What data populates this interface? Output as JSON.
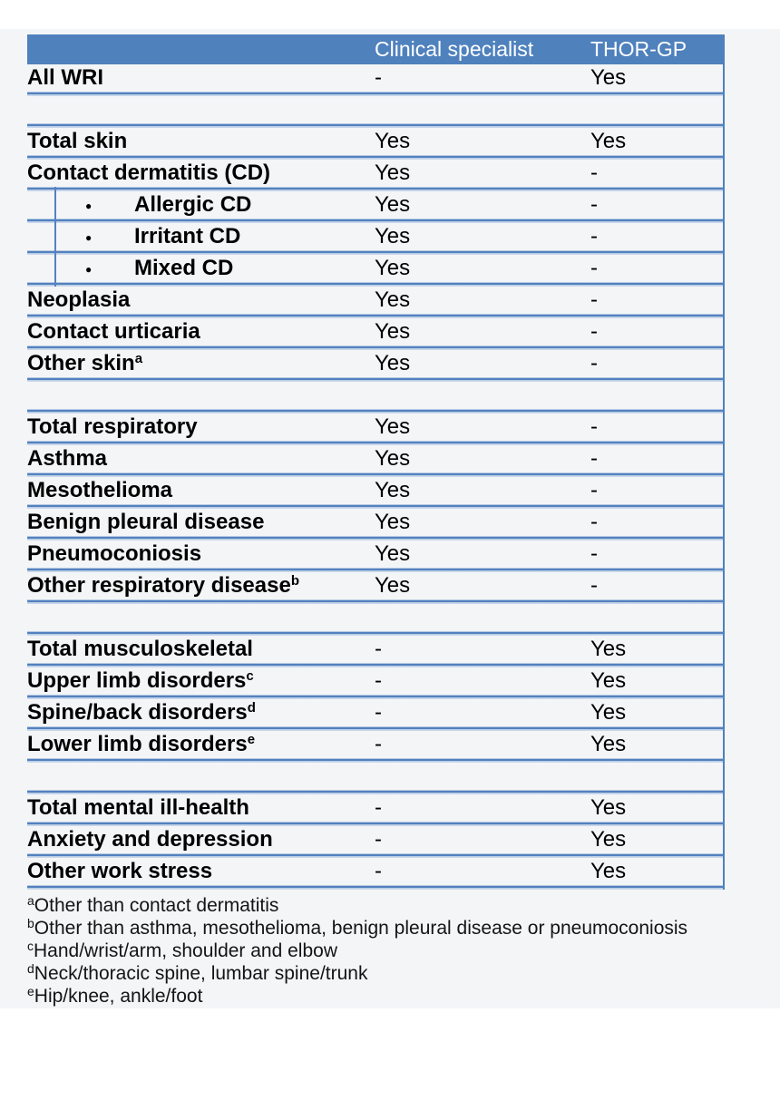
{
  "colors": {
    "header_blue": "#4f81bd",
    "divider_blue": "#5381bf",
    "divider_light_blue": "#b5c9e2",
    "header_text": "#ffffff"
  },
  "icons": {
    "bullet": "●"
  },
  "table": {
    "columns": [
      "",
      "Clinical specialist",
      "THOR-GP"
    ],
    "rows": [
      {
        "label": "All WRI",
        "sup": "",
        "bullet": false,
        "spacer": false,
        "clinical": "-",
        "thor": "Yes"
      },
      {
        "label": "",
        "sup": "",
        "bullet": false,
        "spacer": true,
        "clinical": "",
        "thor": ""
      },
      {
        "label": "Total skin",
        "sup": "",
        "bullet": false,
        "spacer": false,
        "clinical": "Yes",
        "thor": "Yes"
      },
      {
        "label": "Contact dermatitis (CD)",
        "sup": "",
        "bullet": false,
        "spacer": false,
        "clinical": "Yes",
        "thor": "-"
      },
      {
        "label": "Allergic CD",
        "sup": "",
        "bullet": true,
        "spacer": false,
        "clinical": "Yes",
        "thor": "-"
      },
      {
        "label": "Irritant CD",
        "sup": "",
        "bullet": true,
        "spacer": false,
        "clinical": "Yes",
        "thor": "-"
      },
      {
        "label": "Mixed CD",
        "sup": "",
        "bullet": true,
        "spacer": false,
        "clinical": "Yes",
        "thor": "-"
      },
      {
        "label": "Neoplasia",
        "sup": "",
        "bullet": false,
        "spacer": false,
        "clinical": "Yes",
        "thor": "-"
      },
      {
        "label": "Contact urticaria",
        "sup": "",
        "bullet": false,
        "spacer": false,
        "clinical": "Yes",
        "thor": "-"
      },
      {
        "label": "Other skin",
        "sup": "a",
        "bullet": false,
        "spacer": false,
        "clinical": "Yes",
        "thor": "-"
      },
      {
        "label": "",
        "sup": "",
        "bullet": false,
        "spacer": true,
        "clinical": "",
        "thor": ""
      },
      {
        "label": "Total respiratory",
        "sup": "",
        "bullet": false,
        "spacer": false,
        "clinical": "Yes",
        "thor": "-"
      },
      {
        "label": "Asthma",
        "sup": "",
        "bullet": false,
        "spacer": false,
        "clinical": "Yes",
        "thor": "-"
      },
      {
        "label": "Mesothelioma",
        "sup": "",
        "bullet": false,
        "spacer": false,
        "clinical": "Yes",
        "thor": "-"
      },
      {
        "label": "Benign pleural disease",
        "sup": "",
        "bullet": false,
        "spacer": false,
        "clinical": "Yes",
        "thor": "-"
      },
      {
        "label": "Pneumoconiosis",
        "sup": "",
        "bullet": false,
        "spacer": false,
        "clinical": "Yes",
        "thor": "-"
      },
      {
        "label": "Other respiratory disease",
        "sup": "b",
        "bullet": false,
        "spacer": false,
        "clinical": "Yes",
        "thor": "-"
      },
      {
        "label": "",
        "sup": "",
        "bullet": false,
        "spacer": true,
        "clinical": "",
        "thor": ""
      },
      {
        "label": "Total musculoskeletal",
        "sup": "",
        "bullet": false,
        "spacer": false,
        "clinical": "-",
        "thor": "Yes"
      },
      {
        "label": "Upper limb disorders",
        "sup": "c",
        "bullet": false,
        "spacer": false,
        "clinical": "-",
        "thor": "Yes"
      },
      {
        "label": "Spine/back disorders",
        "sup": "d",
        "bullet": false,
        "spacer": false,
        "clinical": "-",
        "thor": "Yes"
      },
      {
        "label": "Lower limb disorders",
        "sup": "e",
        "bullet": false,
        "spacer": false,
        "clinical": "-",
        "thor": "Yes"
      },
      {
        "label": "",
        "sup": "",
        "bullet": false,
        "spacer": true,
        "clinical": "",
        "thor": ""
      },
      {
        "label": "Total mental ill-health",
        "sup": "",
        "bullet": false,
        "spacer": false,
        "clinical": "-",
        "thor": "Yes"
      },
      {
        "label": "Anxiety and depression",
        "sup": "",
        "bullet": false,
        "spacer": false,
        "clinical": "-",
        "thor": "Yes"
      },
      {
        "label": "Other work stress",
        "sup": "",
        "bullet": false,
        "spacer": false,
        "clinical": "-",
        "thor": "Yes"
      }
    ]
  },
  "footnotes": [
    {
      "sup": "a",
      "text": "Other than contact dermatitis"
    },
    {
      "sup": "b",
      "text": "Other than asthma, mesothelioma, benign pleural disease or pneumoconiosis"
    },
    {
      "sup": "c",
      "text": "Hand/wrist/arm, shoulder and elbow"
    },
    {
      "sup": "d",
      "text": "Neck/thoracic spine, lumbar spine/trunk"
    },
    {
      "sup": "e",
      "text": "Hip/knee, ankle/foot"
    }
  ]
}
